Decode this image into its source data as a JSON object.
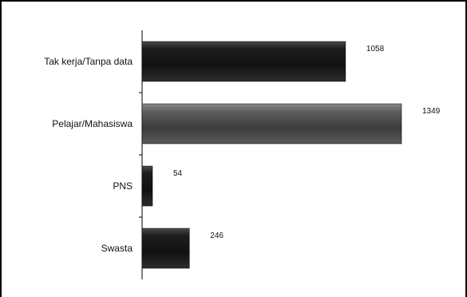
{
  "chart_data": {
    "type": "bar",
    "orientation": "horizontal",
    "categories": [
      "Tak kerja/Tanpa data",
      "Pelajar/Mahasiswa",
      "PNS",
      "Swasta"
    ],
    "values": [
      1058,
      1349,
      54,
      246
    ],
    "xlim": [
      0,
      1400
    ],
    "grid": false,
    "legend": "none",
    "colors": {
      "dark_bar": "#1a1a1a",
      "highlight_bar": "#555555",
      "axis": "#000000",
      "frame": "#000000"
    }
  }
}
